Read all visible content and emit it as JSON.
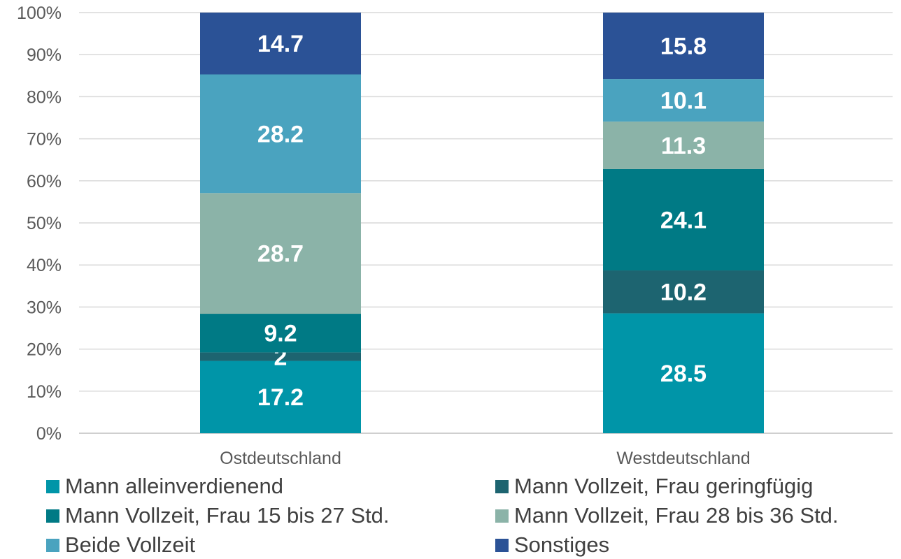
{
  "chart_data": {
    "type": "bar",
    "stacked": true,
    "categories": [
      "Ostdeutschland",
      "Westdeutschland"
    ],
    "series": [
      {
        "name": "Mann alleinverdienend",
        "values": [
          17.2,
          28.5
        ],
        "color": "#0095A8"
      },
      {
        "name": "Mann Vollzeit, Frau geringfügig",
        "values": [
          2,
          10.2
        ],
        "color": "#1D6470"
      },
      {
        "name": "Mann Vollzeit, Frau 15 bis 27 Std.",
        "values": [
          9.2,
          24.1
        ],
        "color": "#007A85"
      },
      {
        "name": "Mann Vollzeit, Frau 28 bis 36 Std.",
        "values": [
          28.7,
          11.3
        ],
        "color": "#8BB3A8"
      },
      {
        "name": "Beide Vollzeit",
        "values": [
          28.2,
          10.1
        ],
        "color": "#4AA3BF"
      },
      {
        "name": "Sonstiges",
        "values": [
          14.7,
          15.8
        ],
        "color": "#2B5296"
      }
    ],
    "yticks": [
      "0%",
      "10%",
      "20%",
      "30%",
      "40%",
      "50%",
      "60%",
      "70%",
      "80%",
      "90%",
      "100%"
    ],
    "ylim": [
      0,
      100
    ],
    "grid": true,
    "legend_position": "bottom"
  }
}
